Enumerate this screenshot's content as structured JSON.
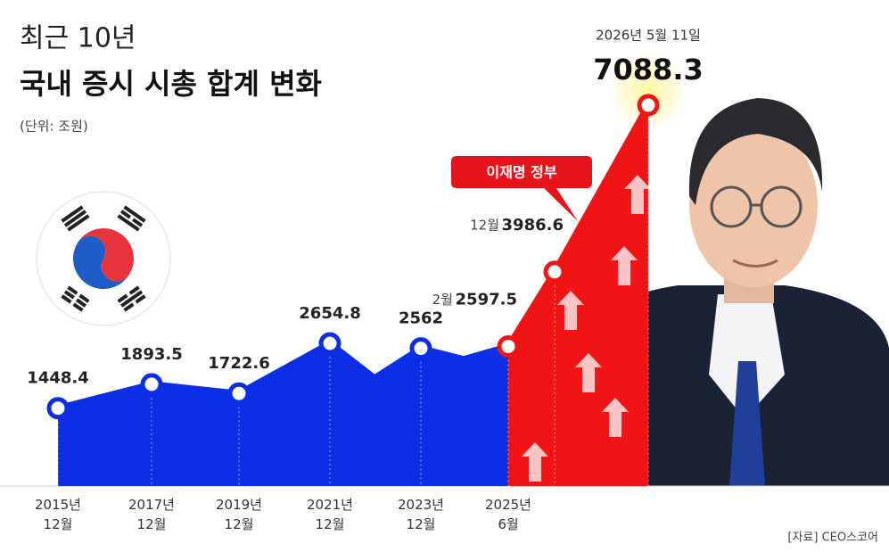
{
  "chart_data": {
    "type": "line",
    "title": "최근 10년",
    "subtitle": "국내 증시 시총 합계 변화",
    "unit_note": "(단위: 조원)",
    "annotation": "이재명 정부",
    "source": "[자료] CEO스코어",
    "categories": [
      "2015년\n12월",
      "2017년\n12월",
      "2019년\n12월",
      "2021년\n12월",
      null,
      "2023년\n12월",
      null,
      "2025년\n6월",
      null,
      null
    ],
    "point_notes": [
      null,
      null,
      null,
      null,
      null,
      null,
      null,
      "2월",
      "12월",
      "2026년 5월 11일"
    ],
    "values": [
      1448.4,
      1893.5,
      1722.6,
      2654.8,
      2010,
      2562,
      2360,
      2597.5,
      3986.6,
      7088.3
    ],
    "value_labels": [
      "1448.4",
      "1893.5",
      "1722.6",
      "2654.8",
      null,
      "2562",
      null,
      "2597.5",
      "3986.6",
      "7088.3"
    ],
    "colors": [
      "#0b2ee6",
      "#f01414"
    ],
    "ylim": [
      0,
      7800
    ]
  }
}
